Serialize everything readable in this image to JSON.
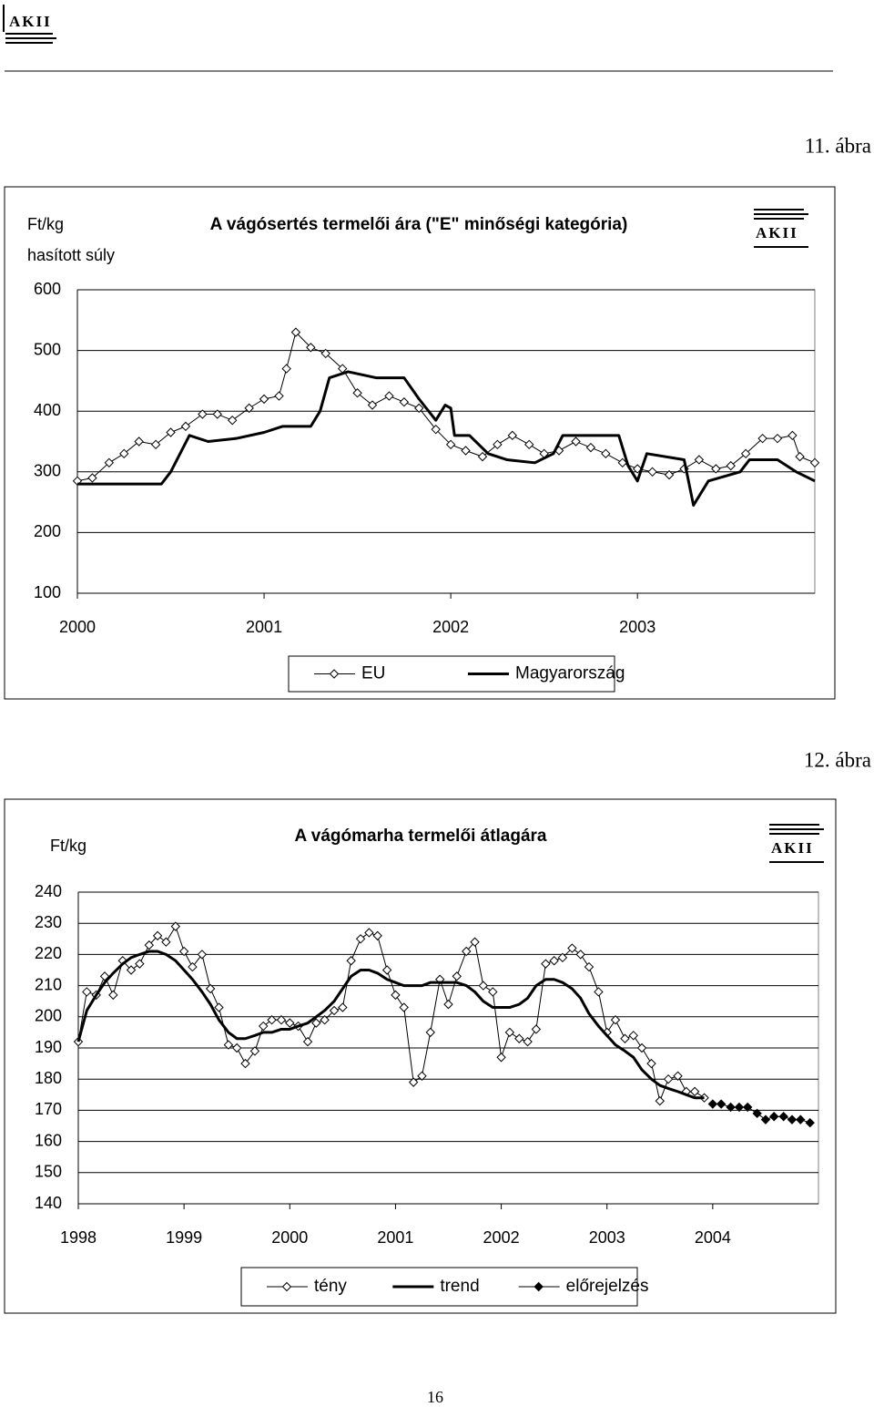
{
  "logo": "AKII",
  "figure_labels": [
    "11. ábra",
    "12. ábra"
  ],
  "page_number": "16",
  "chart_data": [
    {
      "type": "line",
      "title": "A vágósertés termelői ára (\"E\" minőségi kategória)",
      "ylabel": [
        "Ft/kg",
        "hasított súly"
      ],
      "xlim": [
        2000,
        2003.95
      ],
      "xticks": [
        2000,
        2001,
        2002,
        2003
      ],
      "ylim": [
        100,
        600
      ],
      "yticks": [
        100,
        200,
        300,
        400,
        500,
        600
      ],
      "grid": true,
      "legend": "bottom",
      "series": [
        {
          "name": "EU",
          "color": "#000000",
          "marker": "open-diamond",
          "width": 1,
          "x": [
            2000.0,
            2000.08,
            2000.17,
            2000.25,
            2000.33,
            2000.42,
            2000.5,
            2000.58,
            2000.67,
            2000.75,
            2000.83,
            2000.92,
            2001.0,
            2001.08,
            2001.12,
            2001.17,
            2001.25,
            2001.33,
            2001.42,
            2001.5,
            2001.58,
            2001.67,
            2001.75,
            2001.83,
            2001.92,
            2002.0,
            2002.08,
            2002.17,
            2002.25,
            2002.33,
            2002.42,
            2002.5,
            2002.58,
            2002.67,
            2002.75,
            2002.83,
            2002.92,
            2003.0,
            2003.08,
            2003.17,
            2003.25,
            2003.33,
            2003.42,
            2003.5,
            2003.58,
            2003.67,
            2003.75,
            2003.83,
            2003.87,
            2003.95
          ],
          "values": [
            285,
            290,
            315,
            330,
            350,
            345,
            365,
            375,
            395,
            395,
            385,
            405,
            420,
            425,
            470,
            530,
            505,
            495,
            470,
            430,
            410,
            425,
            415,
            405,
            370,
            345,
            335,
            325,
            345,
            360,
            345,
            330,
            335,
            350,
            340,
            330,
            315,
            305,
            300,
            295,
            305,
            320,
            305,
            310,
            330,
            355,
            355,
            360,
            325,
            315
          ]
        },
        {
          "name": "Magyarország",
          "color": "#000000",
          "marker": "none",
          "width": 3,
          "x": [
            2000.0,
            2000.45,
            2000.5,
            2000.6,
            2000.7,
            2000.85,
            2001.0,
            2001.1,
            2001.25,
            2001.3,
            2001.35,
            2001.45,
            2001.6,
            2001.75,
            2001.83,
            2001.92,
            2001.97,
            2002.0,
            2002.02,
            2002.1,
            2002.2,
            2002.3,
            2002.45,
            2002.55,
            2002.6,
            2002.9,
            2002.95,
            2003.0,
            2003.05,
            2003.25,
            2003.3,
            2003.38,
            2003.55,
            2003.6,
            2003.75,
            2003.85,
            2003.95
          ],
          "values": [
            280,
            280,
            300,
            360,
            350,
            355,
            365,
            375,
            375,
            400,
            455,
            465,
            455,
            455,
            420,
            385,
            410,
            405,
            360,
            360,
            330,
            320,
            315,
            330,
            360,
            360,
            310,
            285,
            330,
            320,
            245,
            285,
            300,
            320,
            320,
            300,
            285
          ]
        }
      ]
    },
    {
      "type": "line",
      "title": "A vágómarha termelői átlagára",
      "ylabel": [
        "Ft/kg"
      ],
      "xlim": [
        1998,
        2005
      ],
      "xticks": [
        1998,
        1999,
        2000,
        2001,
        2002,
        2003,
        2004
      ],
      "ylim": [
        140,
        240
      ],
      "yticks": [
        140,
        150,
        160,
        170,
        180,
        190,
        200,
        210,
        220,
        230,
        240
      ],
      "grid": true,
      "legend": "bottom",
      "series": [
        {
          "name": "tény",
          "color": "#000000",
          "marker": "open-diamond",
          "width": 1,
          "x": [
            1998.0,
            1998.08,
            1998.17,
            1998.25,
            1998.33,
            1998.42,
            1998.5,
            1998.58,
            1998.67,
            1998.75,
            1998.83,
            1998.92,
            1999.0,
            1999.08,
            1999.17,
            1999.25,
            1999.33,
            1999.42,
            1999.5,
            1999.58,
            1999.67,
            1999.75,
            1999.83,
            1999.92,
            2000.0,
            2000.08,
            2000.17,
            2000.25,
            2000.33,
            2000.42,
            2000.5,
            2000.58,
            2000.67,
            2000.75,
            2000.83,
            2000.92,
            2001.0,
            2001.08,
            2001.17,
            2001.25,
            2001.33,
            2001.42,
            2001.5,
            2001.58,
            2001.67,
            2001.75,
            2001.83,
            2001.92,
            2002.0,
            2002.08,
            2002.17,
            2002.25,
            2002.33,
            2002.42,
            2002.5,
            2002.58,
            2002.67,
            2002.75,
            2002.83,
            2002.92,
            2003.0,
            2003.08,
            2003.17,
            2003.25,
            2003.33,
            2003.42,
            2003.5,
            2003.58,
            2003.67,
            2003.75,
            2003.83,
            2003.92
          ],
          "values": [
            192,
            208,
            207,
            213,
            207,
            218,
            215,
            217,
            223,
            226,
            224,
            229,
            221,
            216,
            220,
            209,
            203,
            191,
            190,
            185,
            189,
            197,
            199,
            199,
            198,
            197,
            192,
            198,
            199,
            202,
            203,
            218,
            225,
            227,
            226,
            215,
            207,
            203,
            179,
            181,
            195,
            212,
            204,
            213,
            221,
            224,
            210,
            208,
            187,
            195,
            193,
            192,
            196,
            217,
            218,
            219,
            222,
            220,
            216,
            208,
            195,
            199,
            193,
            194,
            190,
            185,
            173,
            180,
            181,
            176,
            176,
            174
          ]
        },
        {
          "name": "trend",
          "color": "#000000",
          "marker": "none",
          "width": 3,
          "x": [
            1998.0,
            1998.08,
            1998.17,
            1998.25,
            1998.33,
            1998.42,
            1998.5,
            1998.58,
            1998.67,
            1998.75,
            1998.83,
            1998.92,
            1999.0,
            1999.08,
            1999.17,
            1999.25,
            1999.33,
            1999.42,
            1999.5,
            1999.58,
            1999.67,
            1999.75,
            1999.83,
            1999.92,
            2000.0,
            2000.08,
            2000.17,
            2000.25,
            2000.33,
            2000.42,
            2000.5,
            2000.58,
            2000.67,
            2000.75,
            2000.83,
            2000.92,
            2001.0,
            2001.08,
            2001.17,
            2001.25,
            2001.33,
            2001.42,
            2001.5,
            2001.58,
            2001.67,
            2001.75,
            2001.83,
            2001.92,
            2002.0,
            2002.08,
            2002.17,
            2002.25,
            2002.33,
            2002.42,
            2002.5,
            2002.58,
            2002.67,
            2002.75,
            2002.83,
            2002.92,
            2003.0,
            2003.08,
            2003.17,
            2003.25,
            2003.33,
            2003.42,
            2003.5,
            2003.58,
            2003.67,
            2003.75,
            2003.83,
            2003.92
          ],
          "values": [
            192,
            202,
            207,
            211,
            214,
            217,
            219,
            220,
            221,
            221,
            220,
            218,
            215,
            212,
            208,
            204,
            199,
            195,
            193,
            193,
            194,
            195,
            195,
            196,
            196,
            197,
            198,
            200,
            202,
            205,
            209,
            213,
            215,
            215,
            214,
            212,
            211,
            210,
            210,
            210,
            211,
            211,
            211,
            211,
            210,
            208,
            205,
            203,
            203,
            203,
            204,
            206,
            210,
            212,
            212,
            211,
            209,
            206,
            201,
            197,
            194,
            191,
            189,
            187,
            183,
            180,
            178,
            177,
            176,
            175,
            174,
            174
          ]
        },
        {
          "name": "előrejelzés",
          "color": "#000000",
          "marker": "filled-diamond",
          "width": 1,
          "x": [
            2004.0,
            2004.08,
            2004.17,
            2004.25,
            2004.33,
            2004.42,
            2004.5,
            2004.58,
            2004.67,
            2004.75,
            2004.83,
            2004.92
          ],
          "values": [
            172,
            172,
            171,
            171,
            171,
            169,
            167,
            168,
            168,
            167,
            167,
            166
          ]
        }
      ]
    }
  ]
}
